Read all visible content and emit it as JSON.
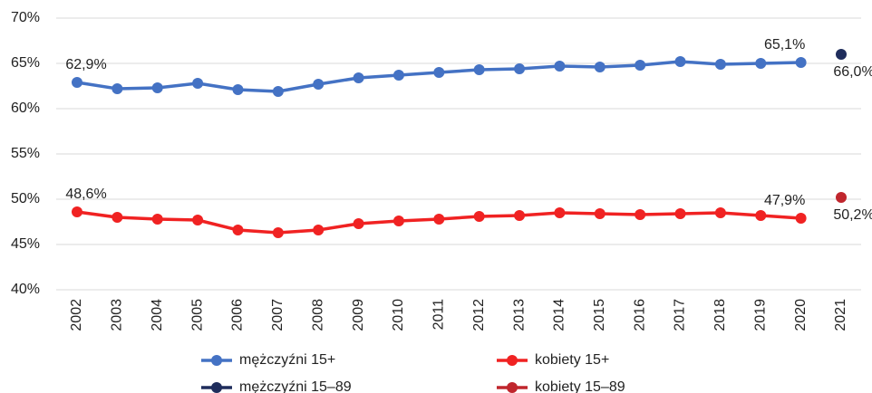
{
  "chart_data": {
    "type": "line",
    "categories": [
      "2002",
      "2003",
      "2004",
      "2005",
      "2006",
      "2007",
      "2008",
      "2009",
      "2010",
      "2011",
      "2012",
      "2013",
      "2014",
      "2015",
      "2016",
      "2017",
      "2018",
      "2019",
      "2020",
      "2021"
    ],
    "series": [
      {
        "name": "mężczyźni 15+",
        "color": "#4472c4",
        "values": [
          62.9,
          62.2,
          62.3,
          62.8,
          62.1,
          61.9,
          62.7,
          63.4,
          63.7,
          64.0,
          64.3,
          64.4,
          64.7,
          64.6,
          64.8,
          65.2,
          64.9,
          65.0,
          65.1,
          null
        ],
        "value_labels": [
          "62,9%",
          null,
          null,
          null,
          null,
          null,
          null,
          null,
          null,
          null,
          null,
          null,
          null,
          null,
          null,
          null,
          null,
          null,
          "65,1%",
          null
        ]
      },
      {
        "name": "kobiety 15+",
        "color": "#f02222",
        "values": [
          48.6,
          48.0,
          47.8,
          47.7,
          46.6,
          46.3,
          46.6,
          47.3,
          47.6,
          47.8,
          48.1,
          48.2,
          48.5,
          48.4,
          48.3,
          48.4,
          48.5,
          48.2,
          47.9,
          null
        ],
        "value_labels": [
          "48,6%",
          null,
          null,
          null,
          null,
          null,
          null,
          null,
          null,
          null,
          null,
          null,
          null,
          null,
          null,
          null,
          null,
          null,
          "47,9%",
          null
        ]
      },
      {
        "name": "mężczyźni 15–89",
        "color": "#1f2d5c",
        "values": [
          null,
          null,
          null,
          null,
          null,
          null,
          null,
          null,
          null,
          null,
          null,
          null,
          null,
          null,
          null,
          null,
          null,
          null,
          null,
          66.0
        ],
        "value_labels": [
          null,
          null,
          null,
          null,
          null,
          null,
          null,
          null,
          null,
          null,
          null,
          null,
          null,
          null,
          null,
          null,
          null,
          null,
          null,
          "66,0%"
        ]
      },
      {
        "name": "kobiety 15–89",
        "color": "#c0262d",
        "values": [
          null,
          null,
          null,
          null,
          null,
          null,
          null,
          null,
          null,
          null,
          null,
          null,
          null,
          null,
          null,
          null,
          null,
          null,
          null,
          50.2
        ],
        "value_labels": [
          null,
          null,
          null,
          null,
          null,
          null,
          null,
          null,
          null,
          null,
          null,
          null,
          null,
          null,
          null,
          null,
          null,
          null,
          null,
          "50,2%"
        ]
      }
    ],
    "ylim": [
      40,
      70
    ],
    "yticks": [
      {
        "value": 40,
        "label": "40%"
      },
      {
        "value": 45,
        "label": "45%"
      },
      {
        "value": 50,
        "label": "50%"
      },
      {
        "value": 55,
        "label": "55%"
      },
      {
        "value": 60,
        "label": "60%"
      },
      {
        "value": 65,
        "label": "65%"
      },
      {
        "value": 70,
        "label": "70%"
      }
    ],
    "grid": true
  }
}
